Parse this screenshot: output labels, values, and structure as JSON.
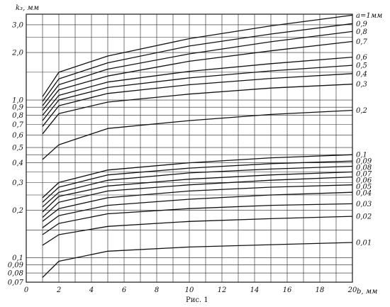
{
  "chart_data": {
    "type": "line",
    "y_scale": "log",
    "xlim": [
      0,
      20
    ],
    "ylim": [
      0.07,
      3.5
    ],
    "x_ticks": [
      0,
      2,
      4,
      6,
      8,
      10,
      12,
      14,
      16,
      18,
      20
    ],
    "y_ticks": [
      {
        "value": 0.07,
        "label": "0,07"
      },
      {
        "value": 0.08,
        "label": "0,08"
      },
      {
        "value": 0.09,
        "label": "0,09"
      },
      {
        "value": 0.1,
        "label": "0,1"
      },
      {
        "value": 0.2,
        "label": "0,2"
      },
      {
        "value": 0.3,
        "label": "0,3"
      },
      {
        "value": 0.4,
        "label": "0,4"
      },
      {
        "value": 0.5,
        "label": "0,5"
      },
      {
        "value": 0.6,
        "label": "0,6"
      },
      {
        "value": 0.7,
        "label": "0,7"
      },
      {
        "value": 0.8,
        "label": "0,8"
      },
      {
        "value": 0.9,
        "label": "0,9"
      },
      {
        "value": 1.0,
        "label": "1,0"
      },
      {
        "value": 2.0,
        "label": "2,0"
      },
      {
        "value": 3.0,
        "label": "3,0"
      }
    ],
    "ylabel": "k₃, мм",
    "xlabel": "b, мм",
    "caption": "Рис. 1",
    "grid": true,
    "series": [
      {
        "name": "a=1мм",
        "x": [
          1,
          2,
          5,
          10,
          15,
          20
        ],
        "y": [
          1.05,
          1.5,
          1.9,
          2.45,
          2.95,
          3.45
        ]
      },
      {
        "name": "0,9",
        "x": [
          1,
          2,
          5,
          10,
          15,
          20
        ],
        "y": [
          0.98,
          1.36,
          1.72,
          2.2,
          2.62,
          3.05
        ]
      },
      {
        "name": "0,8",
        "x": [
          1,
          2,
          5,
          10,
          15,
          20
        ],
        "y": [
          0.92,
          1.25,
          1.57,
          1.96,
          2.34,
          2.72
        ]
      },
      {
        "name": "0,7",
        "x": [
          1,
          2,
          5,
          10,
          15,
          20
        ],
        "y": [
          0.86,
          1.16,
          1.42,
          1.76,
          2.05,
          2.35
        ]
      },
      {
        "name": "0,6",
        "x": [
          1,
          2,
          5,
          10,
          15,
          20
        ],
        "y": [
          0.8,
          1.07,
          1.3,
          1.52,
          1.7,
          1.87
        ]
      },
      {
        "name": "0,5",
        "x": [
          1,
          2,
          5,
          10,
          15,
          20
        ],
        "y": [
          0.74,
          1.0,
          1.2,
          1.38,
          1.53,
          1.66
        ]
      },
      {
        "name": "0,4",
        "x": [
          1,
          2,
          5,
          10,
          15,
          20
        ],
        "y": [
          0.68,
          0.92,
          1.1,
          1.25,
          1.37,
          1.47
        ]
      },
      {
        "name": "0,3",
        "x": [
          1,
          2,
          5,
          10,
          15,
          20
        ],
        "y": [
          0.61,
          0.82,
          0.97,
          1.09,
          1.19,
          1.26
        ]
      },
      {
        "name": "0,2",
        "x": [
          1,
          2,
          5,
          10,
          15,
          20
        ],
        "y": [
          0.42,
          0.52,
          0.66,
          0.74,
          0.81,
          0.86
        ]
      },
      {
        "name": "0,1",
        "x": [
          1,
          2,
          5,
          10,
          15,
          20
        ],
        "y": [
          0.24,
          0.3,
          0.36,
          0.4,
          0.43,
          0.45
        ]
      },
      {
        "name": "0,09",
        "x": [
          1,
          2,
          5,
          10,
          15,
          20
        ],
        "y": [
          0.225,
          0.28,
          0.335,
          0.37,
          0.395,
          0.41
        ]
      },
      {
        "name": "0,08",
        "x": [
          1,
          2,
          5,
          10,
          15,
          20
        ],
        "y": [
          0.21,
          0.26,
          0.31,
          0.345,
          0.365,
          0.38
        ]
      },
      {
        "name": "0,07",
        "x": [
          1,
          2,
          5,
          10,
          15,
          20
        ],
        "y": [
          0.195,
          0.245,
          0.285,
          0.315,
          0.335,
          0.35
        ]
      },
      {
        "name": "0,06",
        "x": [
          1,
          2,
          5,
          10,
          15,
          20
        ],
        "y": [
          0.18,
          0.225,
          0.265,
          0.29,
          0.31,
          0.325
        ]
      },
      {
        "name": "0,05",
        "x": [
          1,
          2,
          5,
          10,
          15,
          20
        ],
        "y": [
          0.17,
          0.205,
          0.24,
          0.265,
          0.28,
          0.29
        ]
      },
      {
        "name": "0,04",
        "x": [
          1,
          2,
          5,
          10,
          15,
          20
        ],
        "y": [
          0.155,
          0.185,
          0.215,
          0.235,
          0.25,
          0.26
        ]
      },
      {
        "name": "0,03",
        "x": [
          1,
          2,
          5,
          10,
          15,
          20
        ],
        "y": [
          0.14,
          0.165,
          0.19,
          0.205,
          0.215,
          0.22
        ]
      },
      {
        "name": "0,02",
        "x": [
          1,
          2,
          5,
          10,
          15,
          20
        ],
        "y": [
          0.12,
          0.14,
          0.158,
          0.17,
          0.177,
          0.183
        ]
      },
      {
        "name": "0,01",
        "x": [
          1,
          2,
          5,
          10,
          15,
          20
        ],
        "y": [
          0.075,
          0.095,
          0.11,
          0.117,
          0.121,
          0.125
        ]
      }
    ]
  }
}
